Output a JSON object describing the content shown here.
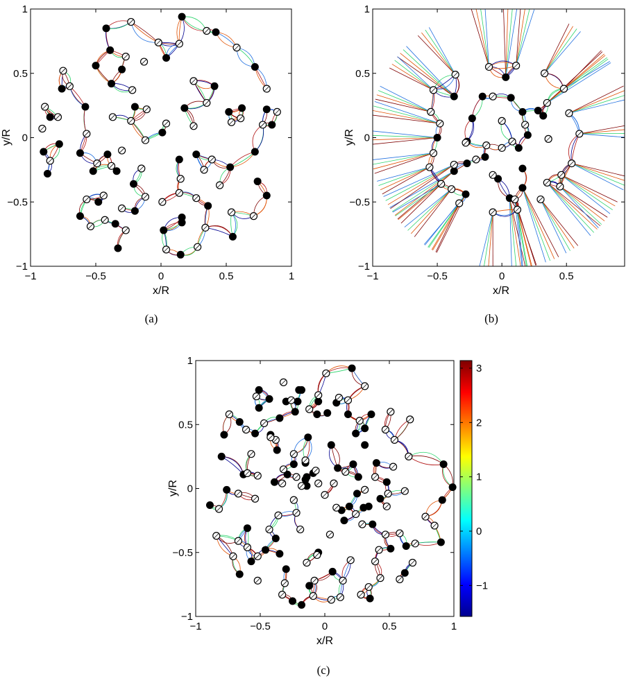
{
  "chart_data": [
    {
      "type": "scatter",
      "caption": "(a)",
      "xlabel": "x/R",
      "ylabel": "y/R",
      "xlim": [
        -1,
        1
      ],
      "ylim": [
        -1,
        1
      ],
      "xticks": [
        -1,
        -0.5,
        0,
        0.5,
        1
      ],
      "yticks": [
        -1,
        -0.5,
        0,
        0.5,
        1
      ],
      "xtick_labels": [
        "−1",
        "−0.5",
        "0",
        "0.5",
        "1"
      ],
      "ytick_labels": [
        "−1",
        "−0.5",
        "0",
        "0.5",
        "1"
      ],
      "filled": [
        [
          -0.42,
          0.85
        ],
        [
          0.16,
          0.94
        ],
        [
          0.42,
          0.82
        ],
        [
          -0.39,
          0.68
        ],
        [
          -0.5,
          0.56
        ],
        [
          -0.3,
          0.53
        ],
        [
          0.04,
          0.62
        ],
        [
          0.72,
          0.55
        ],
        [
          -0.38,
          0.42
        ],
        [
          -0.76,
          0.38
        ],
        [
          0.41,
          0.4
        ],
        [
          -0.58,
          0.24
        ],
        [
          -0.2,
          0.24
        ],
        [
          -0.85,
          0.16
        ],
        [
          0.18,
          0.23
        ],
        [
          0.62,
          0.23
        ],
        [
          0.81,
          0.22
        ],
        [
          0.01,
          0.04
        ],
        [
          -0.78,
          -0.05
        ],
        [
          0.85,
          0.1
        ],
        [
          -0.9,
          -0.11
        ],
        [
          -0.62,
          -0.12
        ],
        [
          -0.41,
          -0.13
        ],
        [
          -0.52,
          -0.26
        ],
        [
          -0.34,
          -0.26
        ],
        [
          0.27,
          -0.13
        ],
        [
          0.72,
          -0.11
        ],
        [
          -0.87,
          -0.28
        ],
        [
          0.53,
          -0.23
        ],
        [
          -0.48,
          -0.5
        ],
        [
          -0.21,
          -0.36
        ],
        [
          0.14,
          -0.17
        ],
        [
          0.74,
          -0.34
        ],
        [
          0.36,
          -0.53
        ],
        [
          0.81,
          -0.45
        ],
        [
          -0.2,
          -0.57
        ],
        [
          -0.62,
          -0.61
        ],
        [
          0.16,
          -0.62
        ],
        [
          -0.35,
          -0.67
        ],
        [
          0.16,
          -0.66
        ],
        [
          0.02,
          -0.72
        ],
        [
          0.55,
          -0.77
        ],
        [
          -0.33,
          -0.86
        ],
        [
          0.15,
          -0.91
        ],
        [
          0.52,
          0.2
        ]
      ],
      "open": [
        [
          -0.23,
          0.9
        ],
        [
          -0.02,
          0.74
        ],
        [
          0.35,
          0.83
        ],
        [
          0.58,
          0.7
        ],
        [
          -0.75,
          0.52
        ],
        [
          -0.27,
          0.63
        ],
        [
          -0.13,
          0.59
        ],
        [
          0.14,
          0.73
        ],
        [
          0.25,
          0.44
        ],
        [
          -0.7,
          0.4
        ],
        [
          -0.22,
          0.37
        ],
        [
          0.81,
          0.38
        ],
        [
          -0.89,
          0.24
        ],
        [
          -0.11,
          0.22
        ],
        [
          -0.79,
          0.16
        ],
        [
          -0.37,
          0.16
        ],
        [
          0.35,
          0.27
        ],
        [
          0.61,
          0.15
        ],
        [
          0.89,
          0.2
        ],
        [
          -0.91,
          0.07
        ],
        [
          -0.57,
          0.03
        ],
        [
          -0.12,
          -0.02
        ],
        [
          -0.23,
          0.13
        ],
        [
          0.04,
          0.11
        ],
        [
          0.25,
          0.09
        ],
        [
          0.54,
          0.12
        ],
        [
          0.78,
          0.1
        ],
        [
          -0.85,
          -0.18
        ],
        [
          -0.49,
          -0.2
        ],
        [
          -0.38,
          -0.22
        ],
        [
          -0.15,
          -0.24
        ],
        [
          -0.3,
          -0.1
        ],
        [
          0.39,
          -0.17
        ],
        [
          0.33,
          -0.25
        ],
        [
          -0.57,
          -0.48
        ],
        [
          -0.44,
          -0.45
        ],
        [
          -0.12,
          -0.46
        ],
        [
          0.27,
          -0.47
        ],
        [
          0.45,
          -0.37
        ],
        [
          -0.3,
          -0.55
        ],
        [
          0.01,
          -0.5
        ],
        [
          0.15,
          -0.32
        ],
        [
          -0.54,
          -0.69
        ],
        [
          -0.43,
          -0.64
        ],
        [
          -0.27,
          -0.72
        ],
        [
          0.04,
          -0.87
        ],
        [
          0.34,
          -0.7
        ],
        [
          0.54,
          -0.58
        ],
        [
          0.71,
          -0.61
        ],
        [
          0.28,
          -0.85
        ],
        [
          0.14,
          -0.43
        ]
      ]
    },
    {
      "type": "scatter",
      "caption": "(b)",
      "xlabel": "x/R",
      "ylabel": "y/R",
      "xlim": [
        -1,
        0.95
      ],
      "ylim": [
        -1,
        1
      ],
      "xticks": [
        -1,
        -0.5,
        0,
        0.5
      ],
      "yticks": [
        -1,
        -0.5,
        0,
        0.5,
        1
      ],
      "xtick_labels": [
        "−1",
        "−0.5",
        "0",
        "0.5"
      ],
      "ytick_labels": [
        "−1",
        "−0.5",
        "0",
        "0.5",
        "1"
      ],
      "filled": [
        [
          0.03,
          0.47
        ],
        [
          -0.37,
          0.32
        ],
        [
          -0.15,
          0.32
        ],
        [
          0.07,
          0.31
        ],
        [
          -0.23,
          0.15
        ],
        [
          0.16,
          0.2
        ],
        [
          -0.5,
          0.0
        ],
        [
          0.28,
          0.21
        ],
        [
          0.32,
          0.17
        ],
        [
          -0.27,
          -0.03
        ],
        [
          0.2,
          0.02
        ],
        [
          0.13,
          -0.08
        ],
        [
          -0.13,
          -0.15
        ],
        [
          -0.37,
          -0.26
        ],
        [
          -0.27,
          -0.2
        ],
        [
          0.16,
          -0.24
        ],
        [
          -0.03,
          -0.32
        ],
        [
          -0.28,
          -0.44
        ],
        [
          0.06,
          -0.47
        ],
        [
          0.16,
          -0.39
        ]
      ],
      "open": [
        [
          -0.36,
          0.49
        ],
        [
          -0.1,
          0.55
        ],
        [
          0.11,
          0.56
        ],
        [
          0.33,
          0.5
        ],
        [
          -0.53,
          0.37
        ],
        [
          0.48,
          0.38
        ],
        [
          -0.55,
          0.2
        ],
        [
          -0.48,
          0.11
        ],
        [
          -0.07,
          0.32
        ],
        [
          0.18,
          0.1
        ],
        [
          0.0,
          0.13
        ],
        [
          0.35,
          0.27
        ],
        [
          0.52,
          0.19
        ],
        [
          -0.53,
          -0.12
        ],
        [
          -0.37,
          -0.21
        ],
        [
          -0.2,
          -0.17
        ],
        [
          -0.12,
          -0.06
        ],
        [
          0.0,
          -0.08
        ],
        [
          0.08,
          -0.03
        ],
        [
          0.36,
          -0.01
        ],
        [
          -0.28,
          -0.04
        ],
        [
          -0.56,
          -0.23
        ],
        [
          -0.47,
          -0.36
        ],
        [
          -0.39,
          -0.4
        ],
        [
          -0.07,
          -0.29
        ],
        [
          0.35,
          -0.35
        ],
        [
          0.46,
          -0.29
        ],
        [
          -0.33,
          -0.51
        ],
        [
          0.1,
          -0.48
        ],
        [
          0.3,
          -0.48
        ],
        [
          -0.07,
          -0.58
        ],
        [
          0.12,
          -0.56
        ],
        [
          0.6,
          0.03
        ],
        [
          0.54,
          -0.2
        ],
        [
          0.45,
          -0.38
        ]
      ]
    },
    {
      "type": "scatter",
      "caption": "(c)",
      "xlabel": "x/R",
      "ylabel": "y/R",
      "xlim": [
        -1,
        1
      ],
      "ylim": [
        -1,
        1
      ],
      "xticks": [
        -1,
        -0.5,
        0,
        0.5,
        1
      ],
      "yticks": [
        -1,
        -0.5,
        0,
        0.5,
        1
      ],
      "xtick_labels": [
        "−1",
        "−0.5",
        "0",
        "0.5",
        "1"
      ],
      "ytick_labels": [
        "−1",
        "−0.5",
        "0",
        "0.5",
        "1"
      ],
      "filled": [
        [
          0.21,
          0.94
        ],
        [
          -0.51,
          0.77
        ],
        [
          -0.18,
          0.77
        ],
        [
          -0.43,
          0.7
        ],
        [
          -0.21,
          0.68
        ],
        [
          -0.51,
          0.63
        ],
        [
          0.36,
          0.58
        ],
        [
          -0.35,
          0.55
        ],
        [
          -0.66,
          0.52
        ],
        [
          -0.23,
          0.6
        ],
        [
          0.09,
          0.67
        ],
        [
          -0.2,
          0.77
        ],
        [
          -0.05,
          0.68
        ],
        [
          -0.3,
          0.68
        ],
        [
          0.02,
          0.59
        ],
        [
          0.18,
          0.58
        ],
        [
          -0.06,
          0.58
        ],
        [
          0.31,
          0.47
        ],
        [
          0.24,
          0.43
        ],
        [
          -0.42,
          0.42
        ],
        [
          -0.54,
          0.43
        ],
        [
          -0.78,
          0.42
        ],
        [
          0.31,
          0.34
        ],
        [
          -0.37,
          0.3
        ],
        [
          -0.13,
          0.4
        ],
        [
          0.05,
          0.34
        ],
        [
          -0.8,
          0.25
        ],
        [
          -0.24,
          0.19
        ],
        [
          -0.15,
          0.2
        ],
        [
          -0.14,
          0.09
        ],
        [
          -0.09,
          0.12
        ],
        [
          0.1,
          0.16
        ],
        [
          0.22,
          0.19
        ],
        [
          0.4,
          0.2
        ],
        [
          -0.63,
          0.11
        ],
        [
          -0.39,
          0.05
        ],
        [
          -0.29,
          0.11
        ],
        [
          -0.15,
          0.07
        ],
        [
          -0.14,
          0.02
        ],
        [
          0.26,
          0.09
        ],
        [
          0.48,
          0.05
        ],
        [
          0.92,
          0.19
        ],
        [
          -0.76,
          -0.01
        ],
        [
          0.25,
          -0.04
        ],
        [
          0.99,
          0.01
        ],
        [
          -0.89,
          -0.13
        ],
        [
          0.91,
          -0.09
        ],
        [
          0.3,
          -0.15
        ],
        [
          0.43,
          -0.08
        ],
        [
          -0.6,
          -0.31
        ],
        [
          -0.38,
          -0.39
        ],
        [
          0.13,
          -0.17
        ],
        [
          0.15,
          -0.25
        ],
        [
          -0.46,
          -0.48
        ],
        [
          -0.57,
          -0.57
        ],
        [
          0.37,
          -0.28
        ],
        [
          -0.35,
          -0.51
        ],
        [
          0.9,
          -0.42
        ],
        [
          0.51,
          -0.47
        ],
        [
          -0.3,
          -0.63
        ],
        [
          -0.05,
          -0.5
        ],
        [
          0.63,
          -0.45
        ],
        [
          0.06,
          -0.65
        ],
        [
          -0.66,
          -0.67
        ],
        [
          0.62,
          -0.66
        ],
        [
          -0.12,
          -0.76
        ],
        [
          0.35,
          -0.86
        ],
        [
          -0.25,
          -0.88
        ],
        [
          0.34,
          -0.14
        ],
        [
          -0.18,
          -0.91
        ],
        [
          0.19,
          -0.14
        ]
      ],
      "open": [
        [
          -0.32,
          0.83
        ],
        [
          0.01,
          0.9
        ],
        [
          0.31,
          0.8
        ],
        [
          -0.53,
          0.72
        ],
        [
          -0.26,
          0.69
        ],
        [
          -0.05,
          0.73
        ],
        [
          0.18,
          0.69
        ],
        [
          0.51,
          0.6
        ],
        [
          0.66,
          0.54
        ],
        [
          0.11,
          0.71
        ],
        [
          -0.74,
          0.58
        ],
        [
          -0.12,
          0.62
        ],
        [
          -0.47,
          0.51
        ],
        [
          -0.61,
          0.46
        ],
        [
          0.27,
          0.53
        ],
        [
          0.47,
          0.46
        ],
        [
          -0.38,
          0.38
        ],
        [
          0.54,
          0.38
        ],
        [
          -0.15,
          0.22
        ],
        [
          -0.57,
          0.27
        ],
        [
          -0.24,
          0.27
        ],
        [
          -0.42,
          0.4
        ],
        [
          -0.32,
          0.15
        ],
        [
          0.53,
          0.17
        ],
        [
          -0.6,
          0.12
        ],
        [
          -0.07,
          0.14
        ],
        [
          -0.22,
          0.09
        ],
        [
          -0.05,
          0.04
        ],
        [
          0.16,
          0.13
        ],
        [
          0.39,
          0.09
        ],
        [
          0.65,
          0.25
        ],
        [
          -0.52,
          0.1
        ],
        [
          -0.33,
          0.04
        ],
        [
          -0.18,
          0.02
        ],
        [
          0.07,
          0.04
        ],
        [
          0.62,
          -0.02
        ],
        [
          -0.67,
          -0.04
        ],
        [
          -0.54,
          -0.08
        ],
        [
          -0.24,
          -0.09
        ],
        [
          0.0,
          -0.05
        ],
        [
          0.31,
          -0.01
        ],
        [
          0.49,
          -0.04
        ],
        [
          -0.82,
          -0.16
        ],
        [
          -0.36,
          -0.21
        ],
        [
          -0.22,
          -0.19
        ],
        [
          0.09,
          -0.15
        ],
        [
          0.24,
          -0.2
        ],
        [
          0.48,
          -0.14
        ],
        [
          -0.84,
          -0.37
        ],
        [
          -0.6,
          -0.46
        ],
        [
          0.78,
          -0.22
        ],
        [
          0.85,
          -0.29
        ],
        [
          0.58,
          -0.35
        ],
        [
          -0.43,
          -0.32
        ],
        [
          -0.19,
          -0.32
        ],
        [
          0.04,
          -0.36
        ],
        [
          0.29,
          -0.28
        ],
        [
          0.47,
          -0.36
        ],
        [
          -0.67,
          -0.41
        ],
        [
          -0.52,
          -0.53
        ],
        [
          0.42,
          -0.48
        ],
        [
          -0.06,
          -0.52
        ],
        [
          0.2,
          -0.56
        ],
        [
          0.7,
          -0.43
        ],
        [
          -0.71,
          -0.53
        ],
        [
          -0.14,
          -0.58
        ],
        [
          0.39,
          -0.57
        ],
        [
          0.68,
          -0.58
        ],
        [
          -0.52,
          -0.72
        ],
        [
          -0.31,
          -0.74
        ],
        [
          -0.08,
          -0.72
        ],
        [
          0.14,
          -0.72
        ],
        [
          0.43,
          -0.7
        ],
        [
          0.58,
          -0.71
        ],
        [
          -0.33,
          -0.83
        ],
        [
          0.05,
          -0.87
        ],
        [
          0.34,
          -0.77
        ],
        [
          -0.09,
          -0.84
        ],
        [
          0.12,
          -0.85
        ],
        [
          0.28,
          -0.83
        ]
      ]
    }
  ],
  "colorbar": {
    "ticks": [
      3,
      2,
      1,
      0,
      -1
    ],
    "tick_labels": [
      "3",
      "2",
      "1",
      "0",
      "−1"
    ],
    "range": [
      -1.57,
      3.14
    ],
    "colormap": "jet"
  },
  "captions": {
    "a": "(a)",
    "b": "(b)",
    "c": "(c)"
  },
  "colors": {
    "point": "#000000",
    "axis": "#000000",
    "background": "#ffffff"
  }
}
